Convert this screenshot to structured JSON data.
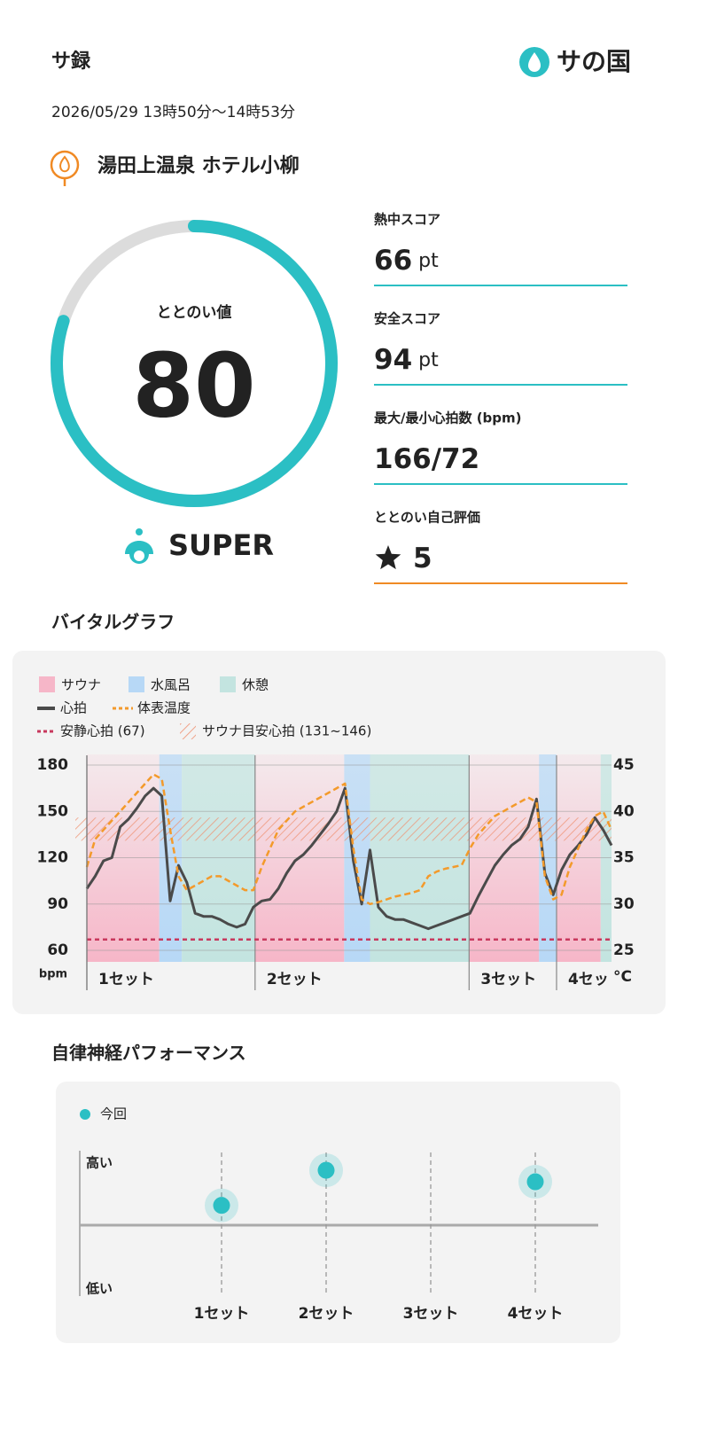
{
  "header": {
    "title": "サ録",
    "logo": "サの国"
  },
  "session": {
    "datetime": "2026/05/29 13時50分〜14時53分",
    "facility": "湯田上温泉 ホテル小柳"
  },
  "totonoi": {
    "label": "ととのい値",
    "value": 80,
    "lim": [
      0,
      100
    ],
    "rank": "SUPER"
  },
  "scores": [
    {
      "label": "熱中スコア",
      "value": 66,
      "unit": "pt"
    },
    {
      "label": "安全スコア",
      "value": 94,
      "unit": "pt"
    },
    {
      "label": "最大/最小心拍数 (bpm)",
      "value": "166/72"
    },
    {
      "label": "ととのい自己評価",
      "value": 5
    }
  ],
  "chart_data": [
    {
      "type": "line",
      "title": "バイタルグラフ",
      "phase_legend": [
        {
          "name": "サウナ",
          "color": "#f6b6c8"
        },
        {
          "name": "水風呂",
          "color": "#b7d8f6"
        },
        {
          "name": "休憩",
          "color": "#c3e4e0"
        }
      ],
      "phases": [
        {
          "name": "サウナ",
          "start": 0,
          "end": 8.7
        },
        {
          "name": "水風呂",
          "start": 8.7,
          "end": 11.4
        },
        {
          "name": "休憩",
          "start": 11.4,
          "end": 20.2
        },
        {
          "name": "サウナ",
          "start": 20.2,
          "end": 30.9
        },
        {
          "name": "水風呂",
          "start": 30.9,
          "end": 34
        },
        {
          "name": "休憩",
          "start": 34,
          "end": 45.9
        },
        {
          "name": "サウナ",
          "start": 45.9,
          "end": 54.3
        },
        {
          "name": "水風呂",
          "start": 54.3,
          "end": 56.4
        },
        {
          "name": "サウナ",
          "start": 56.4,
          "end": 61.7
        },
        {
          "name": "休憩",
          "start": 61.7,
          "end": 63
        }
      ],
      "x": [
        0,
        1,
        2,
        3,
        4,
        5,
        6,
        7,
        8,
        9,
        10,
        11,
        12,
        13,
        14,
        15,
        16,
        17,
        18,
        19,
        20,
        21,
        22,
        23,
        24,
        25,
        26,
        27,
        28,
        29,
        30,
        31,
        32,
        33,
        34,
        35,
        36,
        37,
        38,
        39,
        40,
        41,
        42,
        43,
        44,
        45,
        46,
        47,
        48,
        49,
        50,
        51,
        52,
        53,
        54,
        55,
        56,
        57,
        58,
        59,
        60,
        61,
        62,
        63
      ],
      "xlim": [
        0,
        63
      ],
      "series": [
        {
          "name": "心拍",
          "color": "#4a4a4a",
          "values": [
            100,
            108,
            118,
            120,
            140,
            145,
            152,
            160,
            165,
            160,
            92,
            115,
            104,
            84,
            82,
            82,
            80,
            77,
            75,
            77,
            88,
            92,
            93,
            100,
            110,
            118,
            122,
            128,
            135,
            142,
            150,
            165,
            118,
            90,
            125,
            88,
            82,
            80,
            80,
            78,
            76,
            74,
            76,
            78,
            80,
            82,
            84,
            95,
            105,
            115,
            122,
            128,
            132,
            140,
            158,
            110,
            96,
            112,
            122,
            128,
            135,
            146,
            138,
            128
          ]
        },
        {
          "name": "体表温度",
          "color": "#f39a2b",
          "axis": "y2",
          "values": [
            34,
            37,
            38,
            39,
            40,
            41,
            42,
            43,
            44,
            43.5,
            38,
            33,
            31.5,
            32,
            32.5,
            33,
            33,
            32.5,
            32,
            31.5,
            31.5,
            34,
            36,
            38,
            39,
            40,
            40.5,
            41,
            41.5,
            42,
            42.5,
            43,
            36,
            30.5,
            30,
            30.2,
            30.5,
            30.8,
            31,
            31.2,
            31.5,
            33,
            33.5,
            33.8,
            34,
            34.2,
            36,
            37.5,
            38.5,
            39.5,
            40,
            40.5,
            41,
            41.5,
            41,
            33,
            30.5,
            31,
            34,
            36,
            38,
            39.5,
            40,
            38
          ]
        }
      ],
      "resting_hr": {
        "label": "安静心拍 (67)",
        "value": 67,
        "color": "#c8385d"
      },
      "target_hr": {
        "label": "サウナ目安心拍 (131~146)",
        "range": [
          131,
          146
        ],
        "color": "#ef8f6e"
      },
      "sets": [
        {
          "label": "1セット",
          "x": 0
        },
        {
          "label": "2セット",
          "x": 20.2
        },
        {
          "label": "3セット",
          "x": 45.9
        },
        {
          "label": "4セット",
          "x": 56.4
        }
      ],
      "ylim": [
        60,
        180
      ],
      "yticks": [
        60,
        90,
        120,
        150,
        180
      ],
      "y_unit": "bpm",
      "y2lim": [
        25,
        45
      ],
      "y2ticks": [
        25,
        30,
        35,
        40,
        45
      ],
      "y2_unit": "°C"
    },
    {
      "type": "scatter",
      "title": "自律神経パフォーマンス",
      "categories": [
        "1セット",
        "2セット",
        "3セット",
        "4セット"
      ],
      "series": [
        {
          "name": "今回",
          "color": "#2bbfc4",
          "values": [
            0.31,
            0.86,
            null,
            0.68
          ]
        }
      ],
      "ylim": [
        -1,
        1
      ],
      "yticks": [
        {
          "value": -1,
          "label": "低い"
        },
        {
          "value": 1,
          "label": "高い"
        }
      ]
    }
  ]
}
